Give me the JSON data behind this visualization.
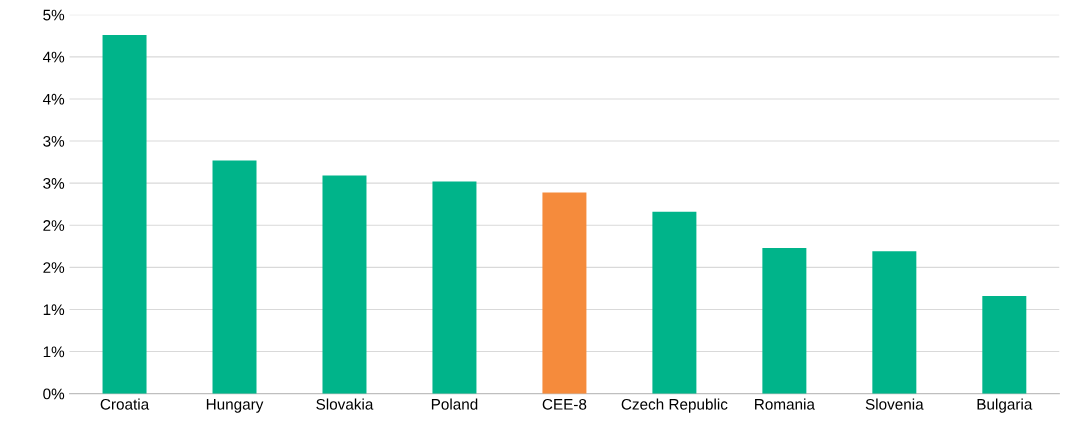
{
  "chart_data": {
    "type": "bar",
    "categories": [
      "Croatia",
      "Hungary",
      "Slovakia",
      "Poland",
      "CEE-8",
      "Czech Republic",
      "Romania",
      "Slovenia",
      "Bulgaria"
    ],
    "values": [
      4.26,
      2.77,
      2.59,
      2.52,
      2.39,
      2.16,
      1.73,
      1.69,
      1.16
    ],
    "colors": [
      "#00b48a",
      "#00b48a",
      "#00b48a",
      "#00b48a",
      "#f58b3c",
      "#00b48a",
      "#00b48a",
      "#00b48a",
      "#00b48a"
    ],
    "ylim": [
      0,
      4.5
    ],
    "yticks": [
      {
        "value": 0,
        "label": "0%"
      },
      {
        "value": 0.5,
        "label": "1%"
      },
      {
        "value": 1,
        "label": "1%"
      },
      {
        "value": 1.5,
        "label": "2%"
      },
      {
        "value": 2,
        "label": "2%"
      },
      {
        "value": 2.5,
        "label": "3%"
      },
      {
        "value": 3,
        "label": "3%"
      },
      {
        "value": 3.5,
        "label": "4%"
      },
      {
        "value": 4,
        "label": "4%"
      },
      {
        "value": 4.5,
        "label": "5%"
      }
    ],
    "grid": "y"
  }
}
